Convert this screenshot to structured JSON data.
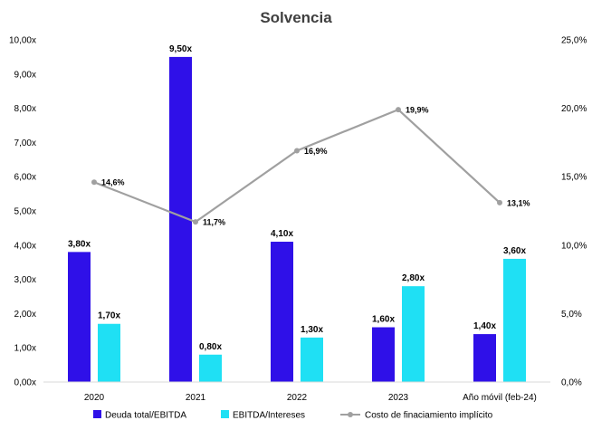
{
  "chart_data": {
    "type": "bar",
    "title": "Solvencia",
    "categories": [
      "2020",
      "2021",
      "2022",
      "2023",
      "Año móvil (feb-24)"
    ],
    "series": [
      {
        "name": "Deuda total/EBITDA",
        "type": "bar",
        "axis": "left",
        "color": "#2f10e8",
        "values": [
          3.8,
          9.5,
          4.1,
          1.6,
          1.4
        ],
        "labels": [
          "3,80x",
          "9,50x",
          "4,10x",
          "1,60x",
          "1,40x"
        ]
      },
      {
        "name": "EBITDA/Intereses",
        "type": "bar",
        "axis": "left",
        "color": "#1fe0f4",
        "values": [
          1.7,
          0.8,
          1.3,
          2.8,
          3.6
        ],
        "labels": [
          "1,70x",
          "0,80x",
          "1,30x",
          "2,80x",
          "3,60x"
        ]
      },
      {
        "name": "Costo de finaciamiento implícito",
        "type": "line",
        "axis": "right",
        "color": "#a0a0a0",
        "values": [
          14.6,
          11.7,
          16.9,
          19.9,
          13.1
        ],
        "labels": [
          "14,6%",
          "11,7%",
          "16,9%",
          "19,9%",
          "13,1%"
        ]
      }
    ],
    "y_left": {
      "range": [
        0,
        10
      ],
      "ticks": [
        "0,00x",
        "1,00x",
        "2,00x",
        "3,00x",
        "4,00x",
        "5,00x",
        "6,00x",
        "7,00x",
        "8,00x",
        "9,00x",
        "10,00x"
      ]
    },
    "y_right": {
      "range": [
        0,
        25
      ],
      "ticks": [
        "0,0%",
        "5,0%",
        "10,0%",
        "15,0%",
        "20,0%",
        "25,0%"
      ]
    },
    "grid": false,
    "legend_position": "bottom"
  }
}
